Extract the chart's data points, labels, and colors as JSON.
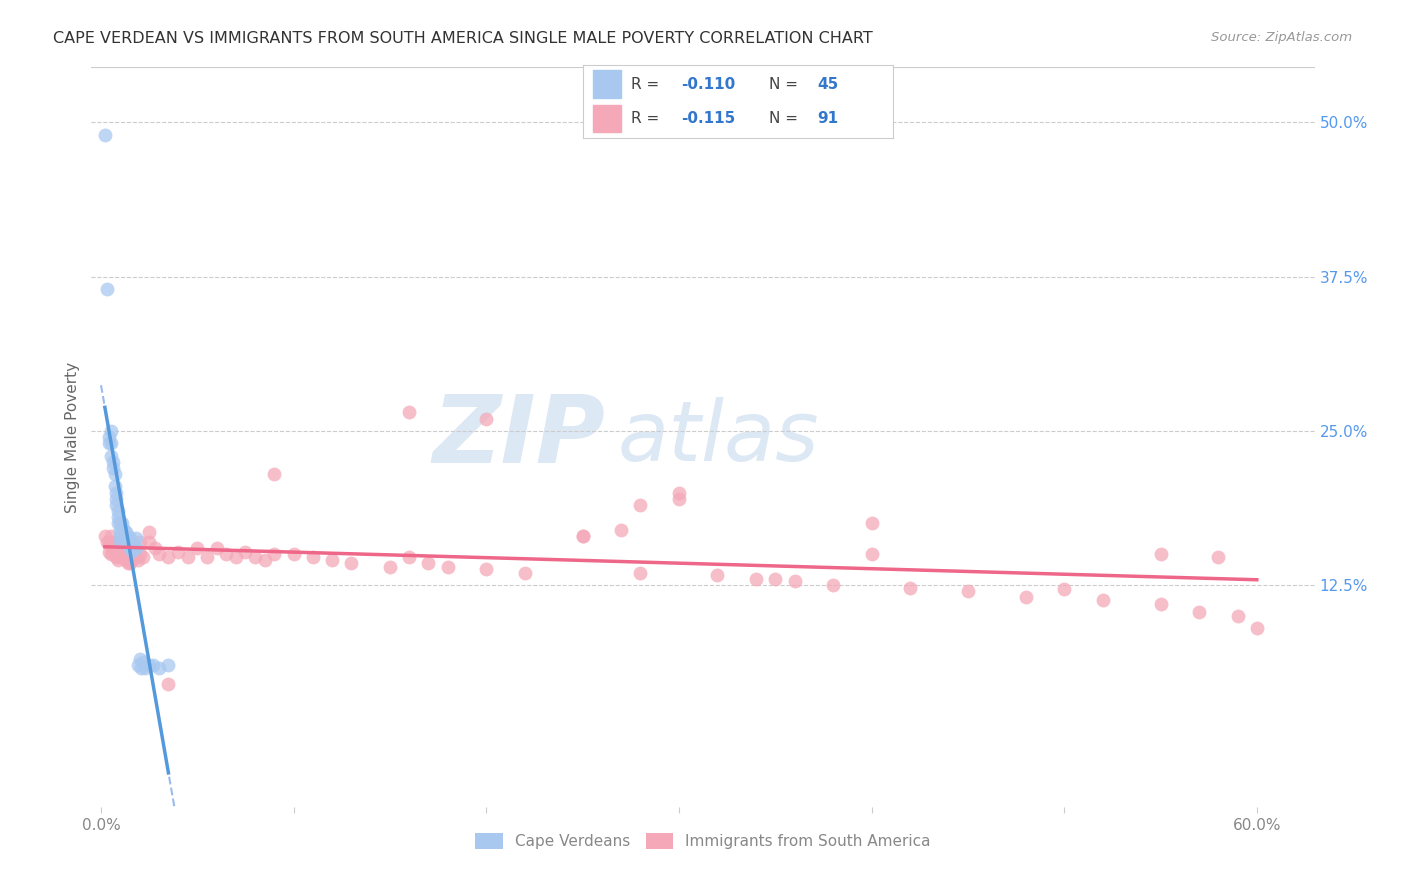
{
  "title": "CAPE VERDEAN VS IMMIGRANTS FROM SOUTH AMERICA SINGLE MALE POVERTY CORRELATION CHART",
  "source": "Source: ZipAtlas.com",
  "ylabel": "Single Male Poverty",
  "xlabel_ticks": [
    "0.0%",
    "",
    "",
    "",
    "",
    "",
    "60.0%"
  ],
  "xlabel_vals": [
    0.0,
    0.1,
    0.2,
    0.3,
    0.4,
    0.5,
    0.6
  ],
  "ylabel_ticks_right": [
    "50.0%",
    "37.5%",
    "25.0%",
    "12.5%"
  ],
  "ylabel_vals_right": [
    0.5,
    0.375,
    0.25,
    0.125
  ],
  "xlim": [
    -0.005,
    0.63
  ],
  "ylim": [
    -0.055,
    0.545
  ],
  "blue_color": "#a8c8f0",
  "pink_color": "#f4a8b8",
  "blue_line_color": "#5599dd",
  "pink_line_color": "#ee6688",
  "dashed_line_color": "#99bbee",
  "watermark_zip": "ZIP",
  "watermark_atlas": "atlas",
  "blue_x": [
    0.002,
    0.003,
    0.004,
    0.004,
    0.005,
    0.005,
    0.005,
    0.006,
    0.006,
    0.007,
    0.007,
    0.008,
    0.008,
    0.008,
    0.009,
    0.009,
    0.009,
    0.01,
    0.01,
    0.01,
    0.01,
    0.011,
    0.011,
    0.012,
    0.012,
    0.013,
    0.013,
    0.014,
    0.014,
    0.015,
    0.015,
    0.016,
    0.016,
    0.017,
    0.018,
    0.018,
    0.019,
    0.02,
    0.021,
    0.022,
    0.023,
    0.025,
    0.027,
    0.03,
    0.035
  ],
  "blue_y": [
    0.49,
    0.365,
    0.245,
    0.24,
    0.25,
    0.24,
    0.23,
    0.225,
    0.22,
    0.215,
    0.205,
    0.2,
    0.195,
    0.19,
    0.185,
    0.18,
    0.175,
    0.175,
    0.17,
    0.165,
    0.16,
    0.175,
    0.168,
    0.17,
    0.163,
    0.168,
    0.16,
    0.165,
    0.158,
    0.163,
    0.155,
    0.16,
    0.153,
    0.155,
    0.163,
    0.155,
    0.06,
    0.065,
    0.058,
    0.063,
    0.058,
    0.06,
    0.06,
    0.058,
    0.06
  ],
  "pink_x": [
    0.002,
    0.003,
    0.004,
    0.004,
    0.005,
    0.005,
    0.005,
    0.006,
    0.006,
    0.007,
    0.007,
    0.008,
    0.008,
    0.009,
    0.009,
    0.01,
    0.01,
    0.011,
    0.011,
    0.012,
    0.012,
    0.013,
    0.013,
    0.014,
    0.014,
    0.015,
    0.015,
    0.016,
    0.017,
    0.018,
    0.019,
    0.02,
    0.022,
    0.025,
    0.028,
    0.03,
    0.035,
    0.04,
    0.045,
    0.05,
    0.055,
    0.06,
    0.07,
    0.075,
    0.08,
    0.085,
    0.09,
    0.1,
    0.11,
    0.12,
    0.13,
    0.15,
    0.16,
    0.17,
    0.18,
    0.2,
    0.22,
    0.25,
    0.27,
    0.28,
    0.3,
    0.32,
    0.34,
    0.36,
    0.38,
    0.4,
    0.42,
    0.45,
    0.48,
    0.5,
    0.52,
    0.55,
    0.57,
    0.58,
    0.59,
    0.6,
    0.28,
    0.35,
    0.2,
    0.25,
    0.3,
    0.4,
    0.55,
    0.16,
    0.09,
    0.065,
    0.035,
    0.025,
    0.02,
    0.015,
    0.01
  ],
  "pink_y": [
    0.165,
    0.16,
    0.158,
    0.152,
    0.165,
    0.158,
    0.15,
    0.16,
    0.153,
    0.158,
    0.15,
    0.155,
    0.148,
    0.153,
    0.145,
    0.155,
    0.148,
    0.158,
    0.15,
    0.155,
    0.148,
    0.152,
    0.145,
    0.15,
    0.143,
    0.15,
    0.143,
    0.148,
    0.152,
    0.148,
    0.145,
    0.15,
    0.148,
    0.16,
    0.155,
    0.15,
    0.148,
    0.152,
    0.148,
    0.155,
    0.148,
    0.155,
    0.148,
    0.152,
    0.148,
    0.145,
    0.15,
    0.15,
    0.148,
    0.145,
    0.143,
    0.14,
    0.148,
    0.143,
    0.14,
    0.138,
    0.135,
    0.165,
    0.17,
    0.135,
    0.2,
    0.133,
    0.13,
    0.128,
    0.125,
    0.15,
    0.123,
    0.12,
    0.115,
    0.122,
    0.113,
    0.11,
    0.103,
    0.148,
    0.1,
    0.09,
    0.19,
    0.13,
    0.26,
    0.165,
    0.195,
    0.175,
    0.15,
    0.265,
    0.215,
    0.15,
    0.045,
    0.168,
    0.16,
    0.145,
    0.155
  ]
}
